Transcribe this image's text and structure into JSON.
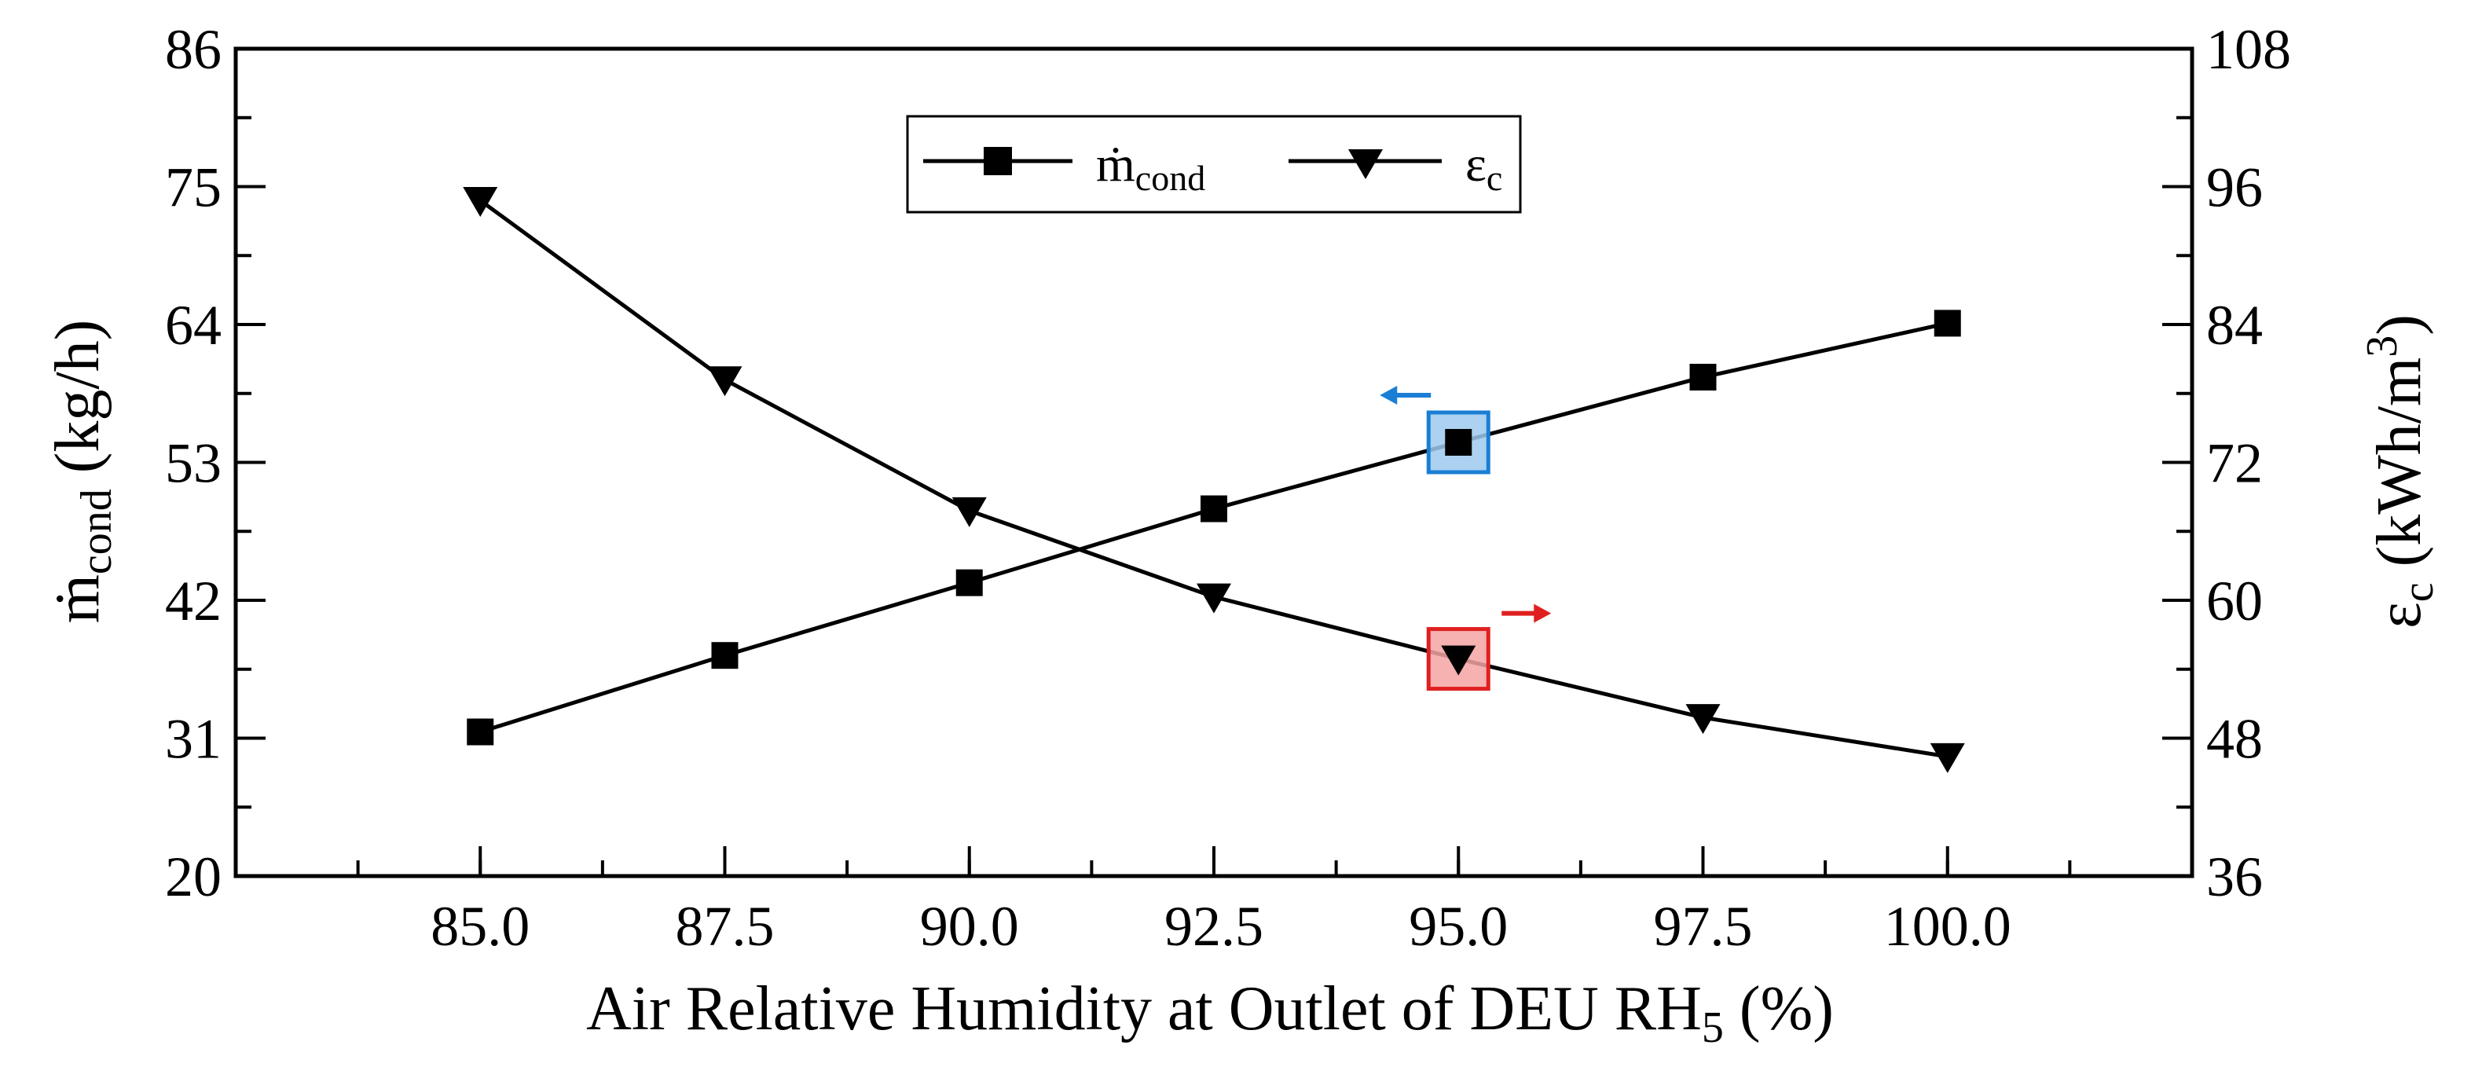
{
  "chart_data": {
    "type": "line",
    "title": "",
    "xlabel": "Air Relative Humidity at Outlet of DEU RH",
    "xlabel_sub": "5",
    "xlabel_suffix": " (%)",
    "ylabel_left": {
      "symbol": "ṁ",
      "sub": "cond",
      "unit": " (kg/h)"
    },
    "ylabel_right": {
      "symbol": "ε",
      "sub": "c",
      "unit_pre": " (kWh/m",
      "unit_sup": "3",
      "unit_post": ")"
    },
    "xlim": [
      82.5,
      102.5
    ],
    "ylim_left": [
      20,
      86
    ],
    "ylim_right": [
      36,
      108
    ],
    "x_ticks": [
      85.0,
      87.5,
      90.0,
      92.5,
      95.0,
      97.5,
      100.0
    ],
    "x_tick_labels": [
      "85.0",
      "87.5",
      "90.0",
      "92.5",
      "95.0",
      "97.5",
      "100.0"
    ],
    "y_left_ticks": [
      20,
      31,
      42,
      53,
      64,
      75,
      86
    ],
    "y_left_tick_labels": [
      "20",
      "31",
      "42",
      "53",
      "64",
      "75",
      "86"
    ],
    "y_right_ticks": [
      36,
      48,
      60,
      72,
      84,
      96,
      108
    ],
    "y_right_tick_labels": [
      "36",
      "48",
      "60",
      "72",
      "84",
      "96",
      "108"
    ],
    "x": [
      85.0,
      87.5,
      90.0,
      92.5,
      95.0,
      97.5,
      100.0
    ],
    "series": [
      {
        "name": "ṁ_cond",
        "legend_symbol": "ṁ",
        "legend_sub": "cond",
        "axis": "left",
        "marker": "square",
        "values": [
          31.5,
          37.6,
          43.4,
          49.3,
          54.6,
          59.8,
          64.1
        ],
        "highlight": {
          "x": 95.0,
          "color": "#1a7fd4",
          "fill": "#9ec9ee",
          "arrow": "left"
        }
      },
      {
        "name": "ε_c",
        "legend_symbol": "ε",
        "legend_sub": "c",
        "axis": "right",
        "marker": "triangle-down",
        "values": [
          94.8,
          79.2,
          67.8,
          60.3,
          54.9,
          49.8,
          46.4
        ],
        "highlight": {
          "x": 95.0,
          "color": "#e02020",
          "fill": "#f5a3a3",
          "arrow": "right"
        }
      }
    ],
    "legend_position": "top-center"
  }
}
